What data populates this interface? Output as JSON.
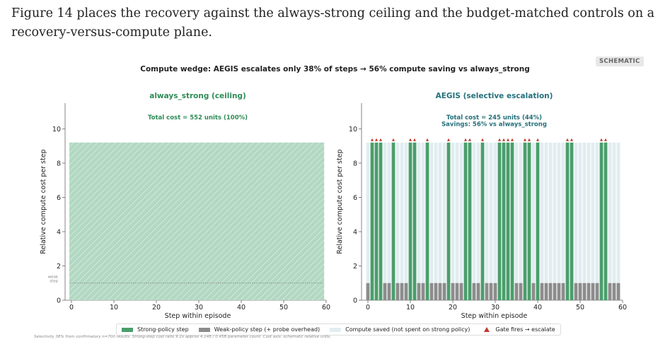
{
  "intro_text": "Figure 14 places the recovery against the always-strong ceiling and the budget-matched controls on a recovery-versus-compute plane.",
  "badge": "SCHEMATIC",
  "suptitle": "Compute wedge: AEGIS escalates only 38% of steps → 56% compute saving vs always_strong",
  "colors": {
    "strong": "#4a9e6b",
    "strong_fill": "#b2d8c2",
    "weak": "#8c8c8c",
    "saved": "#e1edf0",
    "gate": "#c0392b",
    "title_left": "#2e8b57",
    "title_right": "#23707a"
  },
  "chart_data": [
    {
      "type": "bar",
      "title": "always_strong  (ceiling)",
      "annotation": [
        "Total cost = 552 units  (100%)"
      ],
      "xlabel": "Step within episode",
      "ylabel": "Relative compute cost per step",
      "xlim": [
        -0.5,
        60
      ],
      "ylim": [
        0,
        11.5
      ],
      "xticks": [
        "0",
        "10",
        "20",
        "30",
        "40",
        "50",
        "60"
      ],
      "yticks": [
        "0",
        "2",
        "4",
        "6",
        "8",
        "10"
      ],
      "n_steps": 60,
      "strong_cost": 9.2,
      "weak_cost": 1.0,
      "weak_line_label": "weak\nstep",
      "escalated_steps": "all"
    },
    {
      "type": "bar",
      "title": "AEGIS  (selective escalation)",
      "annotation": [
        "Total cost = 245 units  (44%)",
        "Savings: 56% vs always_strong"
      ],
      "xlabel": "Step within episode",
      "ylabel": "Relative compute cost per step",
      "xlim": [
        -0.5,
        60
      ],
      "ylim": [
        0,
        11.5
      ],
      "xticks": [
        "0",
        "10",
        "20",
        "30",
        "40",
        "50",
        "60"
      ],
      "yticks": [
        "0",
        "2",
        "4",
        "6",
        "8",
        "10"
      ],
      "n_steps": 60,
      "strong_cost": 9.2,
      "weak_cost": 1.0,
      "escalated_steps": [
        1,
        2,
        3,
        6,
        10,
        11,
        14,
        19,
        23,
        24,
        27,
        31,
        32,
        33,
        34,
        37,
        38,
        40,
        47,
        48,
        55,
        56
      ]
    }
  ],
  "legend": {
    "strong": "Strong-policy step",
    "weak": "Weak-policy step (+ probe overhead)",
    "saved": "Compute saved (not spent on strong policy)",
    "gate": "Gate fires → escalate"
  },
  "footnote": "Selectivity 38% from confirmatory n=700 results.  Strong-step cost ratio 9.2x approx 4.14B / 0.45B parameter count.  Cost axis: schematic relative units."
}
